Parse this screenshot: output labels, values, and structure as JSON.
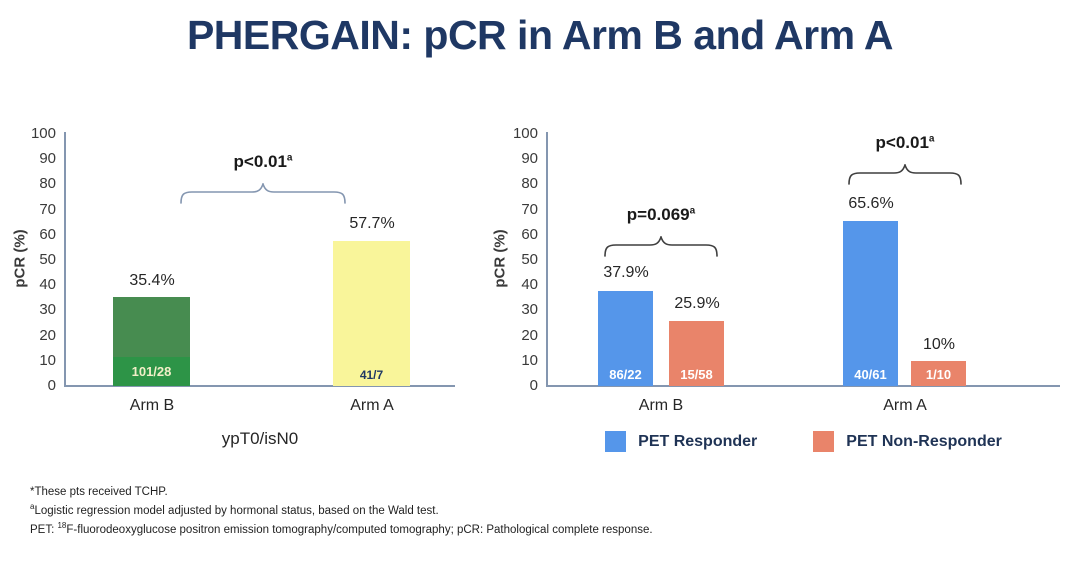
{
  "title": "PHERGAIN: pCR in Arm B and Arm A",
  "colors": {
    "title": "#1F3864",
    "axis": "#8496B0",
    "arm_b_bar": "#478C50",
    "arm_b_bar_bottom_segment": "#2D9447",
    "arm_a_bar": "#F9F59A",
    "pet_responder": "#5596EA",
    "pet_non_responder": "#E9846A",
    "brace_left_chart": "#8496B0",
    "brace_right_chart": "#3F3F3F"
  },
  "chart_data": [
    {
      "type": "bar",
      "ylabel": "pCR (%)",
      "xlabel": "ypT0/isN0",
      "ylim": [
        0,
        100
      ],
      "yticks": [
        0,
        10,
        20,
        30,
        40,
        50,
        60,
        70,
        80,
        90,
        100
      ],
      "categories": [
        "Arm B",
        "Arm A"
      ],
      "values": [
        35.4,
        57.7
      ],
      "value_labels": [
        "35.4%",
        "57.7%"
      ],
      "count_labels": [
        "101/28",
        "41/7"
      ],
      "bar_colors": [
        "#478C50",
        "#F9F59A"
      ],
      "grid": false,
      "annotation": {
        "text": "p<0.01",
        "sup": "a",
        "spans": "Arm B vs Arm A"
      }
    },
    {
      "type": "bar",
      "ylabel": "pCR (%)",
      "xlabel": "",
      "ylim": [
        0,
        100
      ],
      "yticks": [
        0,
        10,
        20,
        30,
        40,
        50,
        60,
        70,
        80,
        90,
        100
      ],
      "categories": [
        "Arm B",
        "Arm A"
      ],
      "series": [
        {
          "name": "PET Responder",
          "color": "#5596EA",
          "values": [
            37.9,
            65.6
          ],
          "value_labels": [
            "37.9%",
            "65.6%"
          ],
          "count_labels": [
            "86/22",
            "40/61"
          ]
        },
        {
          "name": "PET Non-Responder",
          "color": "#E9846A",
          "values": [
            25.9,
            10
          ],
          "value_labels": [
            "25.9%",
            "10%"
          ],
          "count_labels": [
            "15/58",
            "1/10"
          ]
        }
      ],
      "grid": false,
      "annotations": [
        {
          "text": "p=0.069",
          "sup": "a",
          "group": "Arm B"
        },
        {
          "text": "p<0.01",
          "sup": "a",
          "group": "Arm A"
        }
      ],
      "legend": {
        "position": "bottom",
        "items": [
          "PET Responder",
          "PET Non-Responder"
        ]
      }
    }
  ],
  "footnotes": [
    {
      "pre": "*These pts received TCHP."
    },
    {
      "sup": "a",
      "rest": "Logistic regression model adjusted by hormonal status, based on the Wald test."
    },
    {
      "pre": "PET: ",
      "sup": "18",
      "rest": "F-fluorodeoxyglucose positron emission tomography/computed tomography; pCR: Pathological complete response."
    }
  ]
}
